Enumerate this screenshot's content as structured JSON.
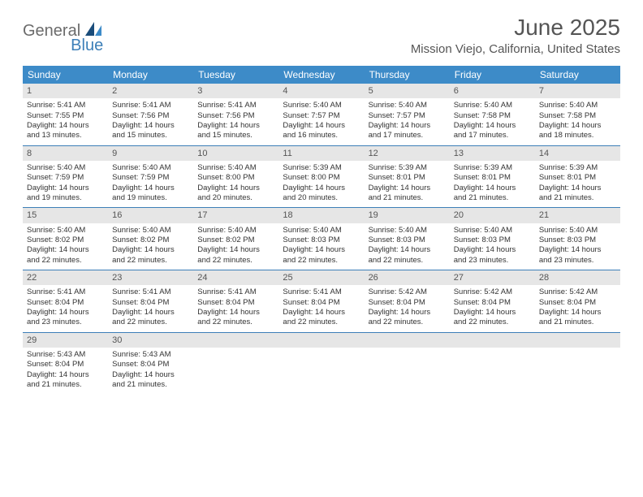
{
  "brand": {
    "part1": "General",
    "part2": "Blue"
  },
  "title": "June 2025",
  "location": "Mission Viejo, California, United States",
  "colors": {
    "header_bg": "#3d8bc8",
    "accent": "#3d7fb8",
    "daynum_bg": "#e6e6e6",
    "text_gray": "#555555"
  },
  "dow": [
    "Sunday",
    "Monday",
    "Tuesday",
    "Wednesday",
    "Thursday",
    "Friday",
    "Saturday"
  ],
  "weeks": [
    [
      {
        "n": "1",
        "sr": "Sunrise: 5:41 AM",
        "ss": "Sunset: 7:55 PM",
        "d1": "Daylight: 14 hours",
        "d2": "and 13 minutes."
      },
      {
        "n": "2",
        "sr": "Sunrise: 5:41 AM",
        "ss": "Sunset: 7:56 PM",
        "d1": "Daylight: 14 hours",
        "d2": "and 15 minutes."
      },
      {
        "n": "3",
        "sr": "Sunrise: 5:41 AM",
        "ss": "Sunset: 7:56 PM",
        "d1": "Daylight: 14 hours",
        "d2": "and 15 minutes."
      },
      {
        "n": "4",
        "sr": "Sunrise: 5:40 AM",
        "ss": "Sunset: 7:57 PM",
        "d1": "Daylight: 14 hours",
        "d2": "and 16 minutes."
      },
      {
        "n": "5",
        "sr": "Sunrise: 5:40 AM",
        "ss": "Sunset: 7:57 PM",
        "d1": "Daylight: 14 hours",
        "d2": "and 17 minutes."
      },
      {
        "n": "6",
        "sr": "Sunrise: 5:40 AM",
        "ss": "Sunset: 7:58 PM",
        "d1": "Daylight: 14 hours",
        "d2": "and 17 minutes."
      },
      {
        "n": "7",
        "sr": "Sunrise: 5:40 AM",
        "ss": "Sunset: 7:58 PM",
        "d1": "Daylight: 14 hours",
        "d2": "and 18 minutes."
      }
    ],
    [
      {
        "n": "8",
        "sr": "Sunrise: 5:40 AM",
        "ss": "Sunset: 7:59 PM",
        "d1": "Daylight: 14 hours",
        "d2": "and 19 minutes."
      },
      {
        "n": "9",
        "sr": "Sunrise: 5:40 AM",
        "ss": "Sunset: 7:59 PM",
        "d1": "Daylight: 14 hours",
        "d2": "and 19 minutes."
      },
      {
        "n": "10",
        "sr": "Sunrise: 5:40 AM",
        "ss": "Sunset: 8:00 PM",
        "d1": "Daylight: 14 hours",
        "d2": "and 20 minutes."
      },
      {
        "n": "11",
        "sr": "Sunrise: 5:39 AM",
        "ss": "Sunset: 8:00 PM",
        "d1": "Daylight: 14 hours",
        "d2": "and 20 minutes."
      },
      {
        "n": "12",
        "sr": "Sunrise: 5:39 AM",
        "ss": "Sunset: 8:01 PM",
        "d1": "Daylight: 14 hours",
        "d2": "and 21 minutes."
      },
      {
        "n": "13",
        "sr": "Sunrise: 5:39 AM",
        "ss": "Sunset: 8:01 PM",
        "d1": "Daylight: 14 hours",
        "d2": "and 21 minutes."
      },
      {
        "n": "14",
        "sr": "Sunrise: 5:39 AM",
        "ss": "Sunset: 8:01 PM",
        "d1": "Daylight: 14 hours",
        "d2": "and 21 minutes."
      }
    ],
    [
      {
        "n": "15",
        "sr": "Sunrise: 5:40 AM",
        "ss": "Sunset: 8:02 PM",
        "d1": "Daylight: 14 hours",
        "d2": "and 22 minutes."
      },
      {
        "n": "16",
        "sr": "Sunrise: 5:40 AM",
        "ss": "Sunset: 8:02 PM",
        "d1": "Daylight: 14 hours",
        "d2": "and 22 minutes."
      },
      {
        "n": "17",
        "sr": "Sunrise: 5:40 AM",
        "ss": "Sunset: 8:02 PM",
        "d1": "Daylight: 14 hours",
        "d2": "and 22 minutes."
      },
      {
        "n": "18",
        "sr": "Sunrise: 5:40 AM",
        "ss": "Sunset: 8:03 PM",
        "d1": "Daylight: 14 hours",
        "d2": "and 22 minutes."
      },
      {
        "n": "19",
        "sr": "Sunrise: 5:40 AM",
        "ss": "Sunset: 8:03 PM",
        "d1": "Daylight: 14 hours",
        "d2": "and 22 minutes."
      },
      {
        "n": "20",
        "sr": "Sunrise: 5:40 AM",
        "ss": "Sunset: 8:03 PM",
        "d1": "Daylight: 14 hours",
        "d2": "and 23 minutes."
      },
      {
        "n": "21",
        "sr": "Sunrise: 5:40 AM",
        "ss": "Sunset: 8:03 PM",
        "d1": "Daylight: 14 hours",
        "d2": "and 23 minutes."
      }
    ],
    [
      {
        "n": "22",
        "sr": "Sunrise: 5:41 AM",
        "ss": "Sunset: 8:04 PM",
        "d1": "Daylight: 14 hours",
        "d2": "and 23 minutes."
      },
      {
        "n": "23",
        "sr": "Sunrise: 5:41 AM",
        "ss": "Sunset: 8:04 PM",
        "d1": "Daylight: 14 hours",
        "d2": "and 22 minutes."
      },
      {
        "n": "24",
        "sr": "Sunrise: 5:41 AM",
        "ss": "Sunset: 8:04 PM",
        "d1": "Daylight: 14 hours",
        "d2": "and 22 minutes."
      },
      {
        "n": "25",
        "sr": "Sunrise: 5:41 AM",
        "ss": "Sunset: 8:04 PM",
        "d1": "Daylight: 14 hours",
        "d2": "and 22 minutes."
      },
      {
        "n": "26",
        "sr": "Sunrise: 5:42 AM",
        "ss": "Sunset: 8:04 PM",
        "d1": "Daylight: 14 hours",
        "d2": "and 22 minutes."
      },
      {
        "n": "27",
        "sr": "Sunrise: 5:42 AM",
        "ss": "Sunset: 8:04 PM",
        "d1": "Daylight: 14 hours",
        "d2": "and 22 minutes."
      },
      {
        "n": "28",
        "sr": "Sunrise: 5:42 AM",
        "ss": "Sunset: 8:04 PM",
        "d1": "Daylight: 14 hours",
        "d2": "and 21 minutes."
      }
    ],
    [
      {
        "n": "29",
        "sr": "Sunrise: 5:43 AM",
        "ss": "Sunset: 8:04 PM",
        "d1": "Daylight: 14 hours",
        "d2": "and 21 minutes."
      },
      {
        "n": "30",
        "sr": "Sunrise: 5:43 AM",
        "ss": "Sunset: 8:04 PM",
        "d1": "Daylight: 14 hours",
        "d2": "and 21 minutes."
      },
      null,
      null,
      null,
      null,
      null
    ]
  ]
}
